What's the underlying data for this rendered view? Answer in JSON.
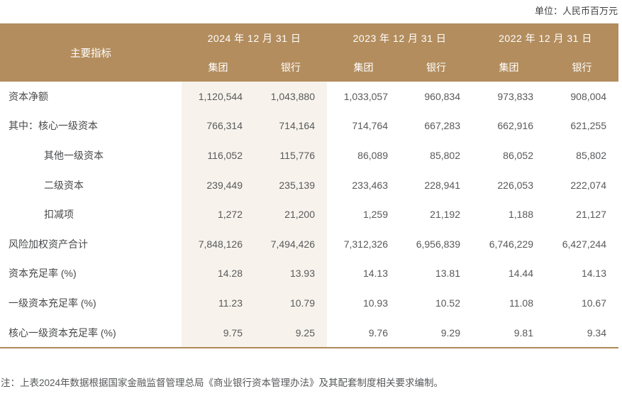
{
  "unit_label": "单位：人民币百万元",
  "table": {
    "header": {
      "indicator_label": "主要指标",
      "date_groups": [
        {
          "date": "2024 年 12 月 31 日",
          "sub": [
            "集团",
            "银行"
          ]
        },
        {
          "date": "2023 年 12 月 31 日",
          "sub": [
            "集团",
            "银行"
          ]
        },
        {
          "date": "2022 年 12 月 31 日",
          "sub": [
            "集团",
            "银行"
          ]
        }
      ]
    },
    "rows": [
      {
        "label": "资本净额",
        "indent": 0,
        "values": [
          "1,120,544",
          "1,043,880",
          "1,033,057",
          "960,834",
          "973,833",
          "908,004"
        ]
      },
      {
        "label": "其中：核心一级资本",
        "indent": 0,
        "values": [
          "766,314",
          "714,164",
          "714,764",
          "667,283",
          "662,916",
          "621,255"
        ]
      },
      {
        "label": "其他一级资本",
        "indent": 1,
        "values": [
          "116,052",
          "115,776",
          "86,089",
          "85,802",
          "86,052",
          "85,802"
        ]
      },
      {
        "label": "二级资本",
        "indent": 1,
        "values": [
          "239,449",
          "235,139",
          "233,463",
          "228,941",
          "226,053",
          "222,074"
        ]
      },
      {
        "label": "扣减项",
        "indent": 1,
        "values": [
          "1,272",
          "21,200",
          "1,259",
          "21,192",
          "1,188",
          "21,127"
        ]
      },
      {
        "label": "风险加权资产合计",
        "indent": 0,
        "values": [
          "7,848,126",
          "7,494,426",
          "7,312,326",
          "6,956,839",
          "6,746,229",
          "6,427,244"
        ]
      },
      {
        "label": "资本充足率 (%)",
        "indent": 0,
        "values": [
          "14.28",
          "13.93",
          "14.13",
          "13.81",
          "14.44",
          "14.13"
        ]
      },
      {
        "label": "一级资本充足率 (%)",
        "indent": 0,
        "values": [
          "11.23",
          "10.79",
          "10.93",
          "10.52",
          "11.08",
          "10.67"
        ]
      },
      {
        "label": "核心一级资本充足率 (%)",
        "indent": 0,
        "values": [
          "9.75",
          "9.25",
          "9.76",
          "9.29",
          "9.81",
          "9.34"
        ]
      }
    ]
  },
  "footnote": "注：上表2024年数据根据国家金融监督管理总局《商业银行资本管理办法》及其配套制度相关要求编制。",
  "colors": {
    "header_bg": "#b38d5e",
    "header_text": "#ffffff",
    "highlight_column_bg": "#f7f3ec",
    "label_text": "#48494b",
    "value_text": "#58595b",
    "bottom_border": "#ad8a58",
    "footnote_text": "#57585a",
    "unit_text": "#3f3f3f"
  }
}
